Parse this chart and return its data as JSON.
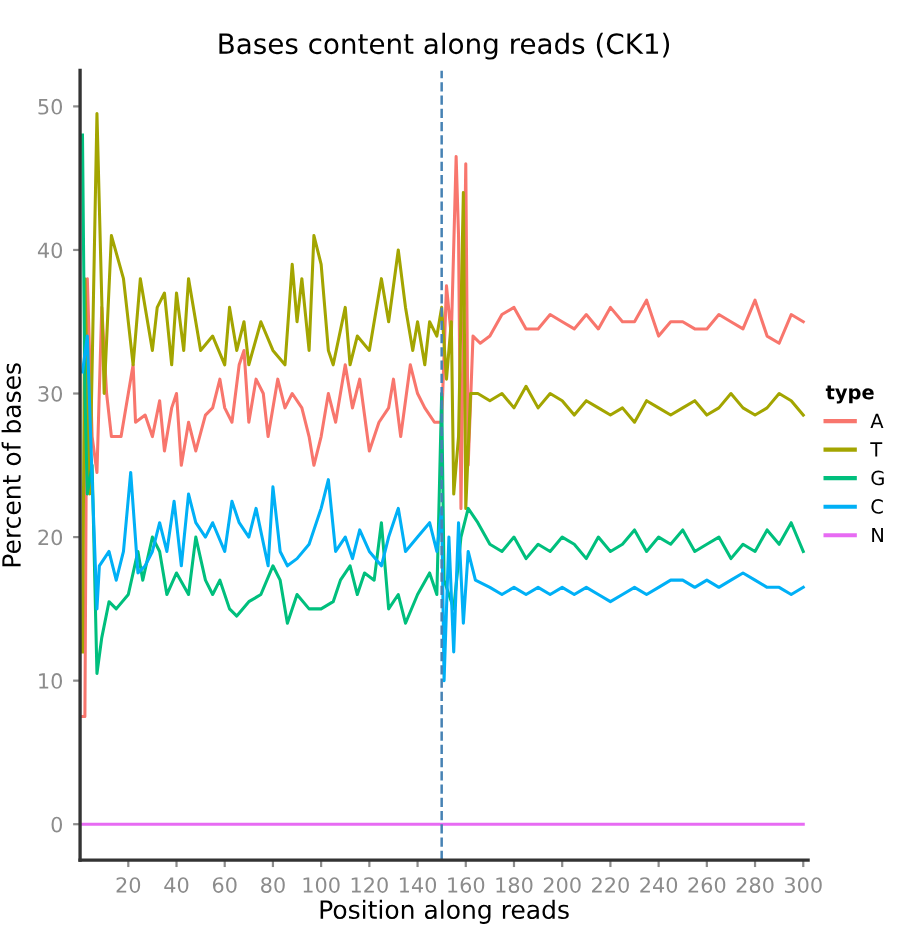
{
  "chart_data": {
    "type": "line",
    "title": "Bases content along reads (CK1)",
    "xlabel": "Position along reads",
    "ylabel": "Percent of bases",
    "legend_title": "type",
    "legend": "right",
    "grid": false,
    "xlim": [
      0,
      302
    ],
    "ylim": [
      -2.5,
      52.5
    ],
    "xticks": [
      20,
      40,
      60,
      80,
      100,
      120,
      140,
      160,
      180,
      200,
      220,
      240,
      260,
      280,
      300
    ],
    "yticks": [
      0,
      10,
      20,
      30,
      40,
      50
    ],
    "ref_lines": [
      {
        "axis": "x",
        "value": 150,
        "color": "#4682b4",
        "line_style": "dashed"
      }
    ],
    "series": [
      {
        "name": "A",
        "color": "#f8766d",
        "x": [
          1,
          2,
          3,
          5,
          7,
          9,
          11,
          13,
          17,
          20,
          22,
          23,
          27,
          30,
          33,
          35,
          38,
          40,
          42,
          45,
          48,
          52,
          55,
          58,
          60,
          63,
          66,
          68,
          70,
          73,
          76,
          78,
          82,
          85,
          88,
          92,
          95,
          97,
          100,
          103,
          106,
          110,
          113,
          116,
          120,
          124,
          128,
          130,
          133,
          137,
          140,
          143,
          147,
          150,
          152,
          154,
          156,
          157,
          158,
          160,
          161,
          163,
          166,
          170,
          175,
          180,
          185,
          190,
          195,
          200,
          205,
          210,
          215,
          220,
          225,
          230,
          235,
          240,
          245,
          250,
          255,
          260,
          265,
          270,
          275,
          280,
          285,
          290,
          295,
          300
        ],
        "values": [
          7.5,
          7.5,
          38,
          27,
          24.5,
          36,
          30,
          27,
          27,
          30,
          32,
          28,
          28.5,
          27,
          29.5,
          26,
          29,
          30,
          25,
          28,
          26,
          28.5,
          29,
          31,
          29,
          28,
          32,
          33,
          28,
          31,
          30,
          27,
          31,
          29,
          30,
          29,
          27,
          25,
          27,
          30,
          28,
          32,
          29,
          31,
          26,
          28,
          29,
          31,
          27,
          32,
          30,
          29,
          28,
          28,
          37.5,
          34,
          46.5,
          41,
          22,
          46,
          25,
          34,
          33.5,
          34,
          35.5,
          36,
          34.5,
          34.5,
          35.5,
          35,
          34.5,
          35.5,
          34.5,
          36,
          35,
          35,
          36.5,
          34,
          35,
          35,
          34.5,
          34.5,
          35.5,
          35,
          34.5,
          36.5,
          34,
          33.5,
          35.5,
          35
        ]
      },
      {
        "name": "T",
        "color": "#a3a500",
        "x": [
          1,
          2,
          4,
          7,
          10,
          13,
          18,
          22,
          25,
          30,
          32,
          35,
          38,
          40,
          43,
          45,
          50,
          55,
          60,
          62,
          65,
          68,
          70,
          75,
          80,
          85,
          88,
          90,
          92,
          95,
          97,
          100,
          103,
          105,
          110,
          112,
          115,
          120,
          125,
          128,
          132,
          135,
          138,
          140,
          143,
          145,
          148,
          150,
          152,
          154,
          155,
          157,
          159,
          160,
          162,
          165,
          170,
          175,
          180,
          185,
          190,
          195,
          200,
          205,
          210,
          215,
          220,
          225,
          230,
          235,
          240,
          245,
          250,
          255,
          260,
          265,
          270,
          275,
          280,
          285,
          290,
          295,
          300
        ],
        "values": [
          12,
          38,
          23,
          49.5,
          30,
          41,
          38,
          32,
          38,
          33,
          36,
          37,
          32,
          37,
          33,
          38,
          33,
          34,
          32,
          36,
          33,
          35,
          32,
          35,
          33,
          32,
          39,
          35,
          38,
          33,
          41,
          39,
          33,
          32,
          36,
          32,
          34,
          33,
          38,
          35,
          40,
          36,
          33,
          35,
          32,
          35,
          34,
          36,
          31,
          35,
          23,
          27,
          44,
          22,
          30,
          30,
          29.5,
          30,
          29,
          30.5,
          29,
          30,
          29.5,
          28.5,
          29.5,
          29,
          28.5,
          29,
          28,
          29.5,
          29,
          28.5,
          29,
          29.5,
          28.5,
          29,
          30,
          29,
          28.5,
          29,
          30,
          29.5,
          28.5
        ]
      },
      {
        "name": "G",
        "color": "#00bf7d",
        "x": [
          1,
          2,
          3,
          5,
          7,
          9,
          12,
          15,
          20,
          24,
          26,
          30,
          33,
          36,
          40,
          45,
          48,
          52,
          55,
          58,
          62,
          65,
          70,
          75,
          80,
          83,
          86,
          90,
          95,
          100,
          105,
          108,
          112,
          115,
          118,
          122,
          125,
          128,
          132,
          135,
          140,
          145,
          148,
          150,
          151,
          155,
          158,
          161,
          165,
          170,
          175,
          180,
          185,
          190,
          195,
          200,
          205,
          210,
          215,
          220,
          225,
          230,
          235,
          240,
          245,
          250,
          255,
          260,
          265,
          270,
          275,
          280,
          285,
          290,
          295,
          300
        ],
        "values": [
          48,
          30,
          23,
          25,
          10.5,
          13,
          15.5,
          15,
          16,
          19,
          17,
          20,
          19,
          16,
          17.5,
          16,
          20,
          17,
          16,
          17,
          15,
          14.5,
          15.5,
          16,
          18,
          17,
          14,
          16,
          15,
          15,
          15.5,
          17,
          18,
          16,
          17.5,
          17,
          21,
          15,
          16,
          14,
          16,
          17.5,
          16,
          30,
          17,
          15,
          20,
          22,
          21,
          19.5,
          19,
          20,
          18.5,
          19.5,
          19,
          20,
          19.5,
          18.5,
          20,
          19,
          19.5,
          20.5,
          19,
          20,
          19.5,
          20.5,
          19,
          19.5,
          20,
          18.5,
          19.5,
          19,
          20.5,
          19.5,
          21,
          19
        ]
      },
      {
        "name": "C",
        "color": "#00b0f6",
        "x": [
          1,
          3,
          5,
          7,
          8,
          12,
          15,
          18,
          21,
          24,
          27,
          30,
          33,
          36,
          39,
          42,
          45,
          48,
          52,
          55,
          60,
          63,
          66,
          70,
          73,
          78,
          80,
          83,
          86,
          90,
          95,
          100,
          103,
          106,
          110,
          113,
          116,
          120,
          125,
          128,
          132,
          135,
          140,
          145,
          148,
          150,
          151,
          153,
          155,
          157,
          159,
          161,
          164,
          170,
          175,
          180,
          185,
          190,
          195,
          200,
          205,
          210,
          215,
          220,
          225,
          230,
          235,
          240,
          245,
          250,
          255,
          260,
          265,
          270,
          275,
          280,
          285,
          290,
          295,
          300
        ],
        "values": [
          31.5,
          34,
          24,
          15,
          18,
          19,
          17,
          19,
          24.5,
          17.5,
          18,
          19,
          21,
          19,
          22.5,
          18,
          23,
          21,
          20,
          21,
          19,
          22.5,
          21,
          20,
          22,
          18,
          23.5,
          19,
          18,
          18.5,
          19.5,
          22,
          24,
          19,
          20,
          18.5,
          20.5,
          19,
          18,
          20,
          22,
          19,
          20,
          21,
          19,
          22,
          10,
          20,
          12,
          21,
          14,
          19,
          17,
          16.5,
          16,
          16.5,
          16,
          16.5,
          16,
          16.5,
          16,
          16.5,
          16,
          15.5,
          16,
          16.5,
          16,
          16.5,
          17,
          17,
          16.5,
          17,
          16.5,
          17,
          17.5,
          17,
          16.5,
          16.5,
          16,
          16.5
        ]
      },
      {
        "name": "N",
        "color": "#e76bf3",
        "x": [
          1,
          300
        ],
        "values": [
          0,
          0
        ]
      }
    ]
  }
}
